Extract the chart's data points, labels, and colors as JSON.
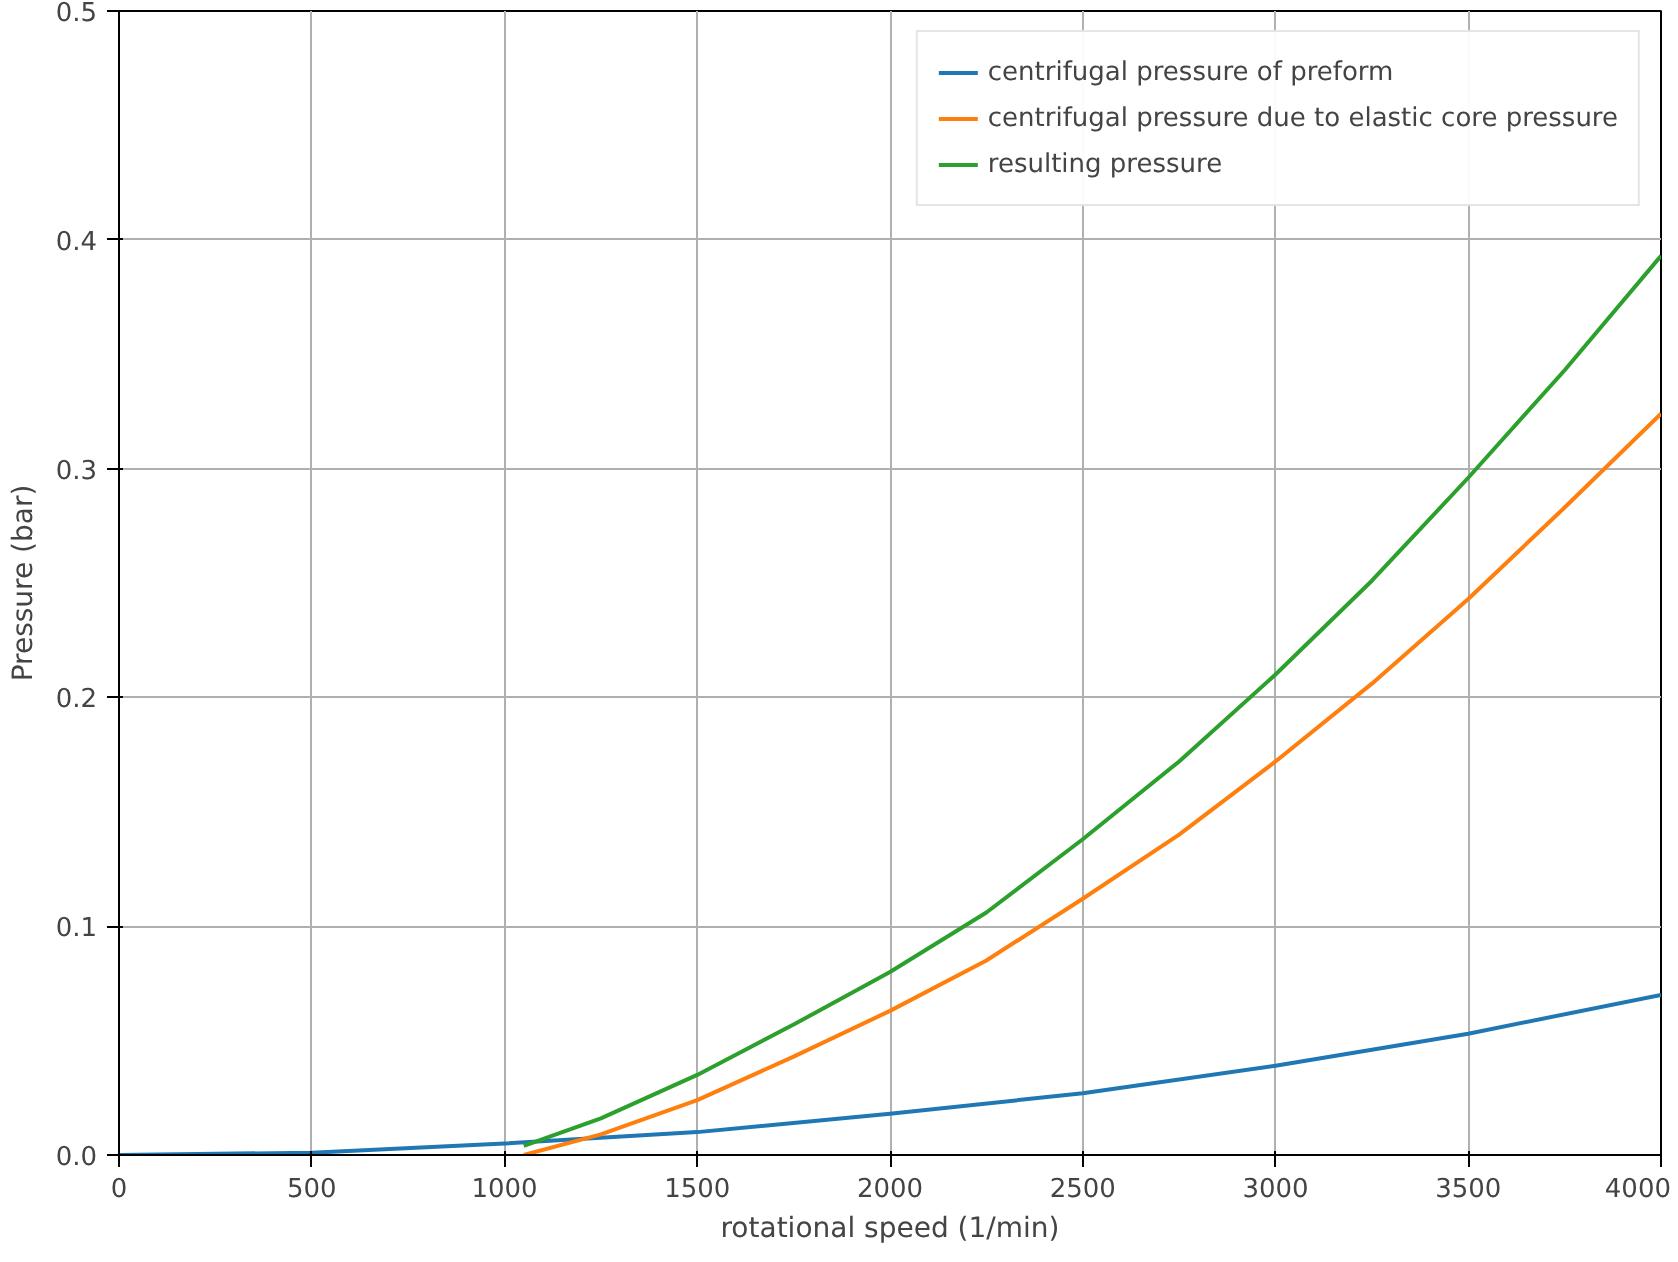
{
  "chart_data": {
    "type": "line",
    "xlabel": "rotational speed (1/min)",
    "ylabel": "Pressure (bar)",
    "xlim": [
      0,
      4000
    ],
    "ylim": [
      0,
      0.5
    ],
    "xticks": [
      0,
      500,
      1000,
      1500,
      2000,
      2500,
      3000,
      3500,
      4000
    ],
    "yticks": [
      {
        "value": 0,
        "label": "0.0"
      },
      0.1,
      0.2,
      0.3,
      0.4,
      0.5
    ],
    "grid": true,
    "legend": "top right",
    "series": [
      {
        "name": "centrifugal pressure of preform",
        "color": "#1f77b4",
        "x": [
          0,
          500,
          1000,
          1500,
          2000,
          2500,
          3000,
          3500,
          4000
        ],
        "values": [
          0,
          0.001,
          0.005,
          0.01,
          0.018,
          0.027,
          0.039,
          0.053,
          0.07
        ]
      },
      {
        "name": "centrifugal pressure due to elastic core pressure",
        "color": "#ff7f0e",
        "x": [
          1050,
          1250,
          1500,
          1750,
          2000,
          2250,
          2500,
          2750,
          3000,
          3250,
          3500,
          3750,
          4000
        ],
        "values": [
          0,
          0.009,
          0.024,
          0.043,
          0.063,
          0.085,
          0.112,
          0.14,
          0.172,
          0.206,
          0.243,
          0.283,
          0.324
        ]
      },
      {
        "name": "resulting pressure",
        "color": "#2ca02c",
        "x": [
          1050,
          1250,
          1500,
          1750,
          2000,
          2250,
          2500,
          2750,
          3000,
          3250,
          3500,
          3750,
          4000
        ],
        "values": [
          0.004,
          0.016,
          0.035,
          0.057,
          0.08,
          0.106,
          0.138,
          0.172,
          0.21,
          0.251,
          0.296,
          0.343,
          0.393
        ]
      }
    ]
  }
}
